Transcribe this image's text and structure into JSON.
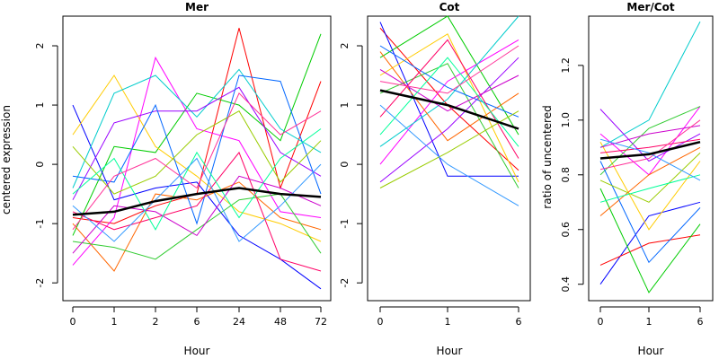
{
  "chart_data": [
    {
      "type": "line",
      "title": "Mer",
      "xlabel": "Hour",
      "ylabel": "centered expression",
      "categories": [
        "0",
        "1",
        "2",
        "6",
        "24",
        "48",
        "72"
      ],
      "yticks": [
        "-2",
        "-1",
        "0",
        "1",
        "2"
      ],
      "ylim": [
        -2.3,
        2.5
      ],
      "grid": false,
      "legend": "none",
      "mean_series": {
        "values": [
          -0.85,
          -0.8,
          -0.62,
          -0.5,
          -0.4,
          -0.5,
          -0.55
        ]
      },
      "series": [
        {
          "color": "#ff0000",
          "values": [
            -0.9,
            -1.0,
            -0.7,
            -0.5,
            2.3,
            -0.4,
            1.4
          ]
        },
        {
          "color": "#00cc00",
          "values": [
            -1.2,
            0.3,
            0.2,
            1.2,
            1.0,
            0.4,
            2.2
          ]
        },
        {
          "color": "#0000ff",
          "values": [
            1.0,
            -0.6,
            -0.4,
            -0.3,
            -1.2,
            -1.6,
            -2.1
          ]
        },
        {
          "color": "#ff00ff",
          "values": [
            -1.7,
            -0.9,
            1.8,
            0.6,
            0.4,
            -0.8,
            -0.9
          ]
        },
        {
          "color": "#ffcc00",
          "values": [
            0.5,
            1.5,
            0.3,
            -0.2,
            -0.8,
            -1.0,
            -1.3
          ]
        },
        {
          "color": "#00cccc",
          "values": [
            -0.4,
            1.2,
            1.5,
            0.8,
            1.6,
            0.6,
            0.2
          ]
        },
        {
          "color": "#ff6600",
          "values": [
            -1.0,
            -1.8,
            -0.5,
            -0.6,
            -0.3,
            -0.9,
            -1.1
          ]
        },
        {
          "color": "#9900ff",
          "values": [
            -0.6,
            0.7,
            0.9,
            0.9,
            1.3,
            0.2,
            -0.2
          ]
        },
        {
          "color": "#33cc33",
          "values": [
            -1.3,
            -1.4,
            -1.6,
            -1.1,
            -0.6,
            -0.5,
            -1.5
          ]
        },
        {
          "color": "#0066ff",
          "values": [
            -0.2,
            -0.3,
            1.0,
            -1.0,
            1.5,
            1.4,
            -0.5
          ]
        },
        {
          "color": "#ff0066",
          "values": [
            -0.8,
            -1.1,
            -0.9,
            -0.7,
            0.2,
            -1.6,
            -1.8
          ]
        },
        {
          "color": "#99cc00",
          "values": [
            0.3,
            -0.5,
            -0.2,
            0.5,
            0.9,
            -0.3,
            0.4
          ]
        },
        {
          "color": "#cc00cc",
          "values": [
            -1.5,
            -0.7,
            -0.8,
            -1.2,
            -0.2,
            -0.4,
            -0.7
          ]
        },
        {
          "color": "#00ff99",
          "values": [
            -0.5,
            0.1,
            -1.1,
            0.2,
            -0.9,
            0.1,
            0.6
          ]
        },
        {
          "color": "#ff3399",
          "values": [
            -1.1,
            -0.2,
            0.1,
            -0.4,
            1.2,
            0.5,
            0.9
          ]
        },
        {
          "color": "#3399ff",
          "values": [
            -0.7,
            -1.3,
            -0.6,
            0.1,
            -1.3,
            -0.7,
            0.0
          ]
        }
      ]
    },
    {
      "type": "line",
      "title": "Cot",
      "xlabel": "Hour",
      "ylabel": "",
      "categories": [
        "0",
        "1",
        "6"
      ],
      "yticks": [
        "-2",
        "-1",
        "0",
        "1",
        "2"
      ],
      "ylim": [
        -2.3,
        2.5
      ],
      "grid": false,
      "legend": "none",
      "mean_series": {
        "values": [
          1.25,
          1.0,
          0.6
        ]
      },
      "series": [
        {
          "color": "#ff0000",
          "values": [
            2.3,
            1.0,
            -0.1
          ]
        },
        {
          "color": "#00cc00",
          "values": [
            1.8,
            2.5,
            0.5
          ]
        },
        {
          "color": "#0000ff",
          "values": [
            2.4,
            -0.2,
            -0.2
          ]
        },
        {
          "color": "#ff00ff",
          "values": [
            0.0,
            1.4,
            2.1
          ]
        },
        {
          "color": "#ffcc00",
          "values": [
            1.5,
            2.2,
            -0.3
          ]
        },
        {
          "color": "#00cccc",
          "values": [
            0.3,
            1.1,
            2.5
          ]
        },
        {
          "color": "#ff6600",
          "values": [
            1.9,
            0.4,
            1.2
          ]
        },
        {
          "color": "#9900ff",
          "values": [
            -0.3,
            0.6,
            1.8
          ]
        },
        {
          "color": "#33cc33",
          "values": [
            1.2,
            1.7,
            -0.4
          ]
        },
        {
          "color": "#0066ff",
          "values": [
            2.0,
            1.3,
            0.8
          ]
        },
        {
          "color": "#ff0066",
          "values": [
            0.8,
            2.1,
            0.1
          ]
        },
        {
          "color": "#99cc00",
          "values": [
            -0.4,
            0.2,
            0.9
          ]
        },
        {
          "color": "#cc00cc",
          "values": [
            1.6,
            0.9,
            1.5
          ]
        },
        {
          "color": "#00ff99",
          "values": [
            0.5,
            1.8,
            0.3
          ]
        },
        {
          "color": "#3399ff",
          "values": [
            1.0,
            0.0,
            -0.7
          ]
        },
        {
          "color": "#ff3399",
          "values": [
            1.4,
            1.2,
            2.0
          ]
        }
      ]
    },
    {
      "type": "line",
      "title": "Mer/Cot",
      "xlabel": "Hour",
      "ylabel": "ratio of uncentered",
      "categories": [
        "0",
        "1",
        "6"
      ],
      "yticks": [
        "0.4",
        "0.6",
        "0.8",
        "1.0",
        "1.2"
      ],
      "ylim": [
        0.34,
        1.38
      ],
      "grid": false,
      "legend": "none",
      "mean_series": {
        "values": [
          0.86,
          0.875,
          0.92
        ]
      },
      "series": [
        {
          "color": "#00cccc",
          "values": [
            0.9,
            1.0,
            1.36
          ]
        },
        {
          "color": "#0000ff",
          "values": [
            0.4,
            0.65,
            0.7
          ]
        },
        {
          "color": "#ff0000",
          "values": [
            0.47,
            0.55,
            0.58
          ]
        },
        {
          "color": "#00cc00",
          "values": [
            0.75,
            0.37,
            0.62
          ]
        },
        {
          "color": "#ffcc00",
          "values": [
            0.92,
            0.6,
            0.85
          ]
        },
        {
          "color": "#ff00ff",
          "values": [
            0.95,
            0.8,
            1.05
          ]
        },
        {
          "color": "#9900ff",
          "values": [
            1.04,
            0.85,
            0.95
          ]
        },
        {
          "color": "#33cc33",
          "values": [
            0.8,
            0.97,
            1.05
          ]
        },
        {
          "color": "#ff6600",
          "values": [
            0.65,
            0.8,
            0.9
          ]
        },
        {
          "color": "#0066ff",
          "values": [
            0.85,
            0.48,
            0.68
          ]
        },
        {
          "color": "#ff0066",
          "values": [
            0.88,
            0.9,
            0.93
          ]
        },
        {
          "color": "#99cc00",
          "values": [
            0.78,
            0.7,
            0.88
          ]
        },
        {
          "color": "#cc00cc",
          "values": [
            0.9,
            0.95,
            0.98
          ]
        },
        {
          "color": "#00ff99",
          "values": [
            0.7,
            0.75,
            0.8
          ]
        },
        {
          "color": "#ff3399",
          "values": [
            0.82,
            0.86,
            1.0
          ]
        },
        {
          "color": "#3399ff",
          "values": [
            0.93,
            0.88,
            0.78
          ]
        }
      ]
    }
  ]
}
